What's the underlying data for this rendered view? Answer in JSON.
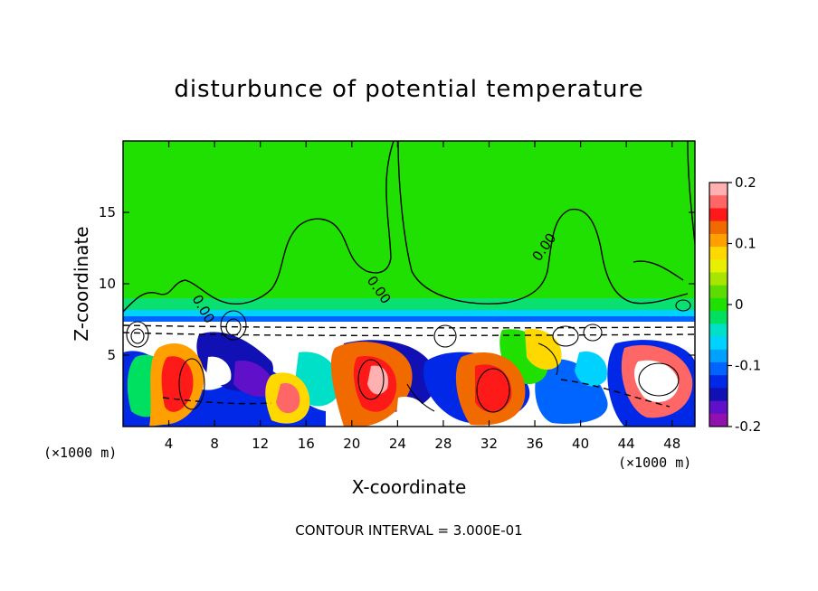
{
  "chart_data": {
    "type": "heatmap",
    "title": "disturbunce of potential temperature",
    "xlabel": "X-coordinate",
    "ylabel": "Z-coordinate",
    "x_unit": "(×1000 m)",
    "y_unit": "(×1000 m)",
    "xlim": [
      0,
      50
    ],
    "ylim": [
      0,
      20
    ],
    "xticks": [
      4,
      8,
      12,
      16,
      20,
      24,
      28,
      32,
      36,
      40,
      44,
      48
    ],
    "yticks": [
      5,
      10,
      15
    ],
    "colorbar": {
      "range": [
        -0.2,
        0.2
      ],
      "tick_labels": [
        "0.2",
        "0.1",
        "0",
        "-0.1",
        "-0.2"
      ],
      "tick_values": [
        0.2,
        0.1,
        0,
        -0.1,
        -0.2
      ],
      "colors": [
        "#ffb0b0",
        "#ff6666",
        "#ff1a1a",
        "#f06a00",
        "#ffa000",
        "#ffd800",
        "#e6f000",
        "#a6e600",
        "#5cdc00",
        "#1fe000",
        "#00e060",
        "#00e0c8",
        "#00d2ff",
        "#00a0ff",
        "#0064ff",
        "#0028e6",
        "#1010b4",
        "#6010c8",
        "#9010b0"
      ]
    },
    "contour_labels": [
      "0.00",
      "0.00",
      "0.00"
    ],
    "contour_interval_note": "CONTOUR INTERVAL = 3.000E-01"
  },
  "labels": {
    "title": "disturbunce of potential temperature",
    "xlabel": "X-coordinate",
    "ylabel": "Z-coordinate",
    "x_unit_left": "(×1000 m)",
    "x_unit_right": "(×1000 m)",
    "note": "CONTOUR INTERVAL = 3.000E-01"
  }
}
